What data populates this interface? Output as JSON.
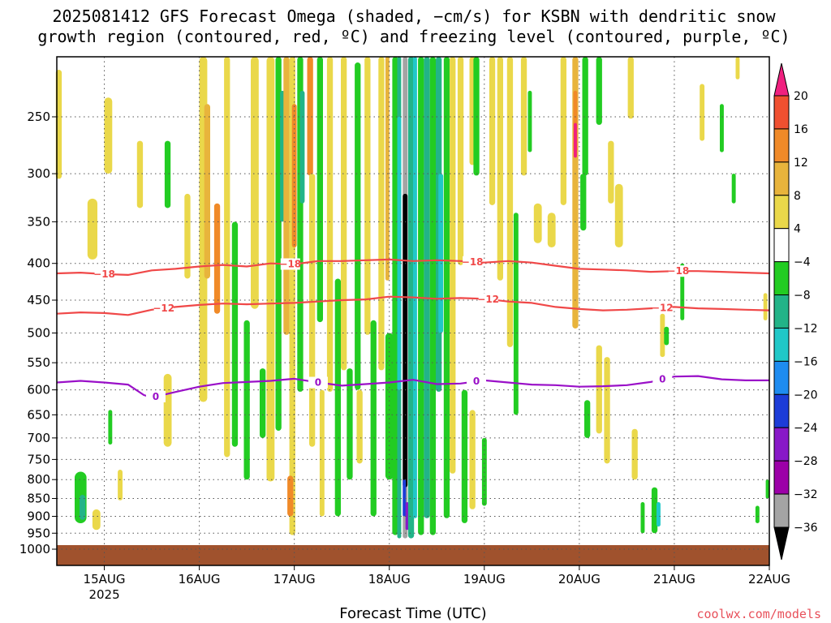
{
  "title": {
    "line1": "2025081412 GFS Forecast Omega (shaded, −cm/s) for KSBN with dendritic snow",
    "line2": "growth region (contoured, red, ºC) and freezing level (contoured, purple, ºC)"
  },
  "credit": "coolwx.com/models",
  "chart_data": {
    "type": "heatmap",
    "xlabel": "Forecast Time (UTC)",
    "x_ticks": [
      {
        "label": "15AUG",
        "sub": "2025",
        "t": 12
      },
      {
        "label": "16AUG",
        "t": 36
      },
      {
        "label": "17AUG",
        "t": 60
      },
      {
        "label": "18AUG",
        "t": 84
      },
      {
        "label": "19AUG",
        "t": 108
      },
      {
        "label": "20AUG",
        "t": 132
      },
      {
        "label": "21AUG",
        "t": 156
      },
      {
        "label": "22AUG",
        "t": 180
      }
    ],
    "xlim_hours": [
      0,
      180
    ],
    "y_ticks": [
      250,
      300,
      350,
      400,
      450,
      500,
      550,
      600,
      650,
      700,
      750,
      800,
      850,
      900,
      950,
      1000
    ],
    "ylim_hPa": [
      200,
      1030
    ],
    "y_scale": "log-pressure",
    "grid": true,
    "colorbar": {
      "labels": [
        "20",
        "16",
        "12",
        "8",
        "4",
        "−4",
        "−8",
        "−12",
        "−16",
        "−20",
        "−24",
        "−28",
        "−32",
        "−36"
      ],
      "colors": [
        "#f0207f",
        "#f05030",
        "#f08a28",
        "#e8b43c",
        "#ead84a",
        "#ffffff",
        "#22cc22",
        "#22b488",
        "#20c8c8",
        "#1e8cf0",
        "#1c3cd8",
        "#8818c8",
        "#9c00a8",
        "#a4a4a4",
        "#000000"
      ]
    },
    "contours": [
      {
        "name": "-18",
        "color": "#f04848",
        "label": "−18",
        "points": [
          [
            0,
            413
          ],
          [
            6,
            412
          ],
          [
            12,
            414
          ],
          [
            18,
            415
          ],
          [
            24,
            409
          ],
          [
            30,
            407
          ],
          [
            36,
            404
          ],
          [
            42,
            402
          ],
          [
            48,
            404
          ],
          [
            54,
            400
          ],
          [
            60,
            401
          ],
          [
            66,
            397
          ],
          [
            72,
            397
          ],
          [
            78,
            396
          ],
          [
            84,
            395
          ],
          [
            90,
            397
          ],
          [
            96,
            396
          ],
          [
            102,
            397
          ],
          [
            108,
            399
          ],
          [
            114,
            397
          ],
          [
            120,
            399
          ],
          [
            126,
            403
          ],
          [
            132,
            407
          ],
          [
            138,
            408
          ],
          [
            144,
            409
          ],
          [
            150,
            411
          ],
          [
            156,
            410
          ],
          [
            162,
            410
          ],
          [
            168,
            411
          ],
          [
            174,
            412
          ],
          [
            180,
            413
          ]
        ],
        "label_hours": [
          12,
          59,
          105,
          157
        ]
      },
      {
        "name": "-12",
        "color": "#f04848",
        "label": "−12",
        "points": [
          [
            0,
            470
          ],
          [
            6,
            468
          ],
          [
            12,
            469
          ],
          [
            18,
            472
          ],
          [
            24,
            464
          ],
          [
            30,
            460
          ],
          [
            36,
            457
          ],
          [
            42,
            455
          ],
          [
            48,
            456
          ],
          [
            54,
            455
          ],
          [
            60,
            454
          ],
          [
            66,
            452
          ],
          [
            72,
            450
          ],
          [
            78,
            449
          ],
          [
            84,
            445
          ],
          [
            90,
            446
          ],
          [
            96,
            448
          ],
          [
            102,
            447
          ],
          [
            108,
            448
          ],
          [
            114,
            452
          ],
          [
            120,
            454
          ],
          [
            126,
            460
          ],
          [
            132,
            463
          ],
          [
            138,
            465
          ],
          [
            144,
            464
          ],
          [
            150,
            462
          ],
          [
            156,
            460
          ],
          [
            162,
            462
          ],
          [
            168,
            463
          ],
          [
            174,
            464
          ],
          [
            180,
            465
          ]
        ],
        "label_hours": [
          27,
          109,
          153
        ]
      },
      {
        "name": "0",
        "color": "#9a10c8",
        "label": "0",
        "points": [
          [
            0,
            586
          ],
          [
            6,
            583
          ],
          [
            12,
            586
          ],
          [
            18,
            590
          ],
          [
            22,
            610
          ],
          [
            24,
            615
          ],
          [
            30,
            604
          ],
          [
            36,
            594
          ],
          [
            42,
            587
          ],
          [
            48,
            585
          ],
          [
            54,
            583
          ],
          [
            60,
            579
          ],
          [
            66,
            586
          ],
          [
            72,
            592
          ],
          [
            78,
            589
          ],
          [
            84,
            586
          ],
          [
            90,
            581
          ],
          [
            96,
            589
          ],
          [
            102,
            588
          ],
          [
            108,
            582
          ],
          [
            114,
            586
          ],
          [
            120,
            590
          ],
          [
            126,
            591
          ],
          [
            132,
            594
          ],
          [
            138,
            593
          ],
          [
            144,
            591
          ],
          [
            150,
            585
          ],
          [
            156,
            575
          ],
          [
            162,
            574
          ],
          [
            168,
            580
          ],
          [
            174,
            582
          ],
          [
            180,
            582
          ]
        ],
        "label_hours": [
          25,
          66,
          106,
          153
        ]
      }
    ],
    "features": [
      {
        "t": 0.5,
        "dt": 1.5,
        "p1": 215,
        "p2": 305,
        "val": 6
      },
      {
        "t": 13,
        "dt": 2,
        "p1": 235,
        "p2": 300,
        "val": 6
      },
      {
        "t": 9,
        "dt": 2.5,
        "p1": 325,
        "p2": 395,
        "val": 6
      },
      {
        "t": 6,
        "dt": 3,
        "p1": 780,
        "p2": 920,
        "val": -9
      },
      {
        "t": 6.5,
        "dt": 1.5,
        "p1": 840,
        "p2": 910,
        "val": -13
      },
      {
        "t": 10,
        "dt": 2,
        "p1": 880,
        "p2": 940,
        "val": 6
      },
      {
        "t": 16,
        "dt": 1.2,
        "p1": 775,
        "p2": 855,
        "val": 6
      },
      {
        "t": 13.5,
        "dt": 1,
        "p1": 640,
        "p2": 715,
        "val": -9
      },
      {
        "t": 21,
        "dt": 1.5,
        "p1": 270,
        "p2": 335,
        "val": 6
      },
      {
        "t": 28,
        "dt": 1.5,
        "p1": 270,
        "p2": 335,
        "val": -9
      },
      {
        "t": 28,
        "dt": 2,
        "p1": 570,
        "p2": 720,
        "val": 6
      },
      {
        "t": 33,
        "dt": 1.5,
        "p1": 320,
        "p2": 420,
        "val": 6
      },
      {
        "t": 37,
        "dt": 2,
        "p1": 205,
        "p2": 620,
        "val": 6
      },
      {
        "t": 38,
        "dt": 1.5,
        "p1": 240,
        "p2": 420,
        "val": 10
      },
      {
        "t": 40.5,
        "dt": 1.5,
        "p1": 330,
        "p2": 470,
        "val": 14
      },
      {
        "t": 43,
        "dt": 1.5,
        "p1": 205,
        "p2": 740,
        "val": 6
      },
      {
        "t": 45,
        "dt": 1.5,
        "p1": 350,
        "p2": 720,
        "val": -9
      },
      {
        "t": 48,
        "dt": 1.5,
        "p1": 480,
        "p2": 800,
        "val": -9
      },
      {
        "t": 50,
        "dt": 2,
        "p1": 205,
        "p2": 460,
        "val": 6
      },
      {
        "t": 52,
        "dt": 1.5,
        "p1": 560,
        "p2": 700,
        "val": -9
      },
      {
        "t": 54,
        "dt": 2,
        "p1": 205,
        "p2": 800,
        "val": 6
      },
      {
        "t": 56,
        "dt": 1.5,
        "p1": 205,
        "p2": 680,
        "val": -9
      },
      {
        "t": 57,
        "dt": 1.2,
        "p1": 230,
        "p2": 350,
        "val": -13
      },
      {
        "t": 58,
        "dt": 1.5,
        "p1": 205,
        "p2": 500,
        "val": 10
      },
      {
        "t": 59.5,
        "dt": 1.5,
        "p1": 205,
        "p2": 950,
        "val": 6
      },
      {
        "t": 60,
        "dt": 1.2,
        "p1": 240,
        "p2": 380,
        "val": 14
      },
      {
        "t": 61.5,
        "dt": 1.5,
        "p1": 205,
        "p2": 600,
        "val": -9
      },
      {
        "t": 62,
        "dt": 1.2,
        "p1": 230,
        "p2": 330,
        "val": -13
      },
      {
        "t": 59,
        "dt": 1.5,
        "p1": 790,
        "p2": 900,
        "val": 14
      },
      {
        "t": 64,
        "dt": 1.5,
        "p1": 205,
        "p2": 300,
        "val": 14
      },
      {
        "t": 64.5,
        "dt": 1.5,
        "p1": 300,
        "p2": 720,
        "val": 6
      },
      {
        "t": 66.5,
        "dt": 1.5,
        "p1": 205,
        "p2": 480,
        "val": -9
      },
      {
        "t": 67,
        "dt": 1.2,
        "p1": 600,
        "p2": 900,
        "val": 6
      },
      {
        "t": 69,
        "dt": 1.5,
        "p1": 205,
        "p2": 600,
        "val": 6
      },
      {
        "t": 71,
        "dt": 1.5,
        "p1": 420,
        "p2": 900,
        "val": -9
      },
      {
        "t": 72.5,
        "dt": 1.5,
        "p1": 205,
        "p2": 560,
        "val": 6
      },
      {
        "t": 74,
        "dt": 1.5,
        "p1": 560,
        "p2": 800,
        "val": -9
      },
      {
        "t": 76,
        "dt": 1.5,
        "p1": 210,
        "p2": 600,
        "val": -9
      },
      {
        "t": 76.5,
        "dt": 1.5,
        "p1": 600,
        "p2": 760,
        "val": 6
      },
      {
        "t": 78.5,
        "dt": 1.5,
        "p1": 205,
        "p2": 500,
        "val": 6
      },
      {
        "t": 80,
        "dt": 1.5,
        "p1": 480,
        "p2": 900,
        "val": -9
      },
      {
        "t": 82,
        "dt": 1.5,
        "p1": 205,
        "p2": 560,
        "val": 6
      },
      {
        "t": 83.5,
        "dt": 1,
        "p1": 205,
        "p2": 420,
        "val": 10
      },
      {
        "t": 84,
        "dt": 2,
        "p1": 500,
        "p2": 800,
        "val": -9
      },
      {
        "t": 85.5,
        "dt": 1.5,
        "p1": 205,
        "p2": 950,
        "val": -9
      },
      {
        "t": 86.5,
        "dt": 1,
        "p1": 205,
        "p2": 960,
        "val": -13
      },
      {
        "t": 86.5,
        "dt": 1,
        "p1": 250,
        "p2": 600,
        "val": -17
      },
      {
        "t": 88,
        "dt": 1.2,
        "p1": 205,
        "p2": 960,
        "val": -34
      },
      {
        "t": 88,
        "dt": 1.2,
        "p1": 320,
        "p2": 820,
        "val": -40
      },
      {
        "t": 87.8,
        "dt": 0.8,
        "p1": 800,
        "p2": 900,
        "val": -26
      },
      {
        "t": 88.5,
        "dt": 0.8,
        "p1": 860,
        "p2": 940,
        "val": -30
      },
      {
        "t": 89.5,
        "dt": 1.5,
        "p1": 205,
        "p2": 960,
        "val": -13
      },
      {
        "t": 90.5,
        "dt": 1,
        "p1": 205,
        "p2": 900,
        "val": -17
      },
      {
        "t": 92,
        "dt": 1.5,
        "p1": 205,
        "p2": 950,
        "val": -9
      },
      {
        "t": 93.5,
        "dt": 1.5,
        "p1": 205,
        "p2": 900,
        "val": -13
      },
      {
        "t": 95,
        "dt": 1.5,
        "p1": 205,
        "p2": 950,
        "val": -9
      },
      {
        "t": 96.5,
        "dt": 1.5,
        "p1": 205,
        "p2": 600,
        "val": -13
      },
      {
        "t": 97,
        "dt": 1.2,
        "p1": 300,
        "p2": 500,
        "val": -17
      },
      {
        "t": 98.5,
        "dt": 1.5,
        "p1": 205,
        "p2": 900,
        "val": -9
      },
      {
        "t": 100,
        "dt": 1.5,
        "p1": 205,
        "p2": 780,
        "val": 6
      },
      {
        "t": 102,
        "dt": 1.5,
        "p1": 205,
        "p2": 400,
        "val": 6
      },
      {
        "t": 103,
        "dt": 1.5,
        "p1": 600,
        "p2": 920,
        "val": -9
      },
      {
        "t": 105,
        "dt": 1.5,
        "p1": 205,
        "p2": 290,
        "val": 6
      },
      {
        "t": 106,
        "dt": 1.5,
        "p1": 205,
        "p2": 300,
        "val": -9
      },
      {
        "t": 105,
        "dt": 1.5,
        "p1": 640,
        "p2": 880,
        "val": 6
      },
      {
        "t": 108,
        "dt": 1.2,
        "p1": 700,
        "p2": 870,
        "val": -9
      },
      {
        "t": 110,
        "dt": 1.5,
        "p1": 205,
        "p2": 330,
        "val": 6
      },
      {
        "t": 112,
        "dt": 1.5,
        "p1": 205,
        "p2": 420,
        "val": 6
      },
      {
        "t": 114.5,
        "dt": 1.5,
        "p1": 205,
        "p2": 520,
        "val": 6
      },
      {
        "t": 116,
        "dt": 1.2,
        "p1": 340,
        "p2": 650,
        "val": -9
      },
      {
        "t": 118,
        "dt": 1.5,
        "p1": 205,
        "p2": 300,
        "val": 6
      },
      {
        "t": 119.5,
        "dt": 1,
        "p1": 230,
        "p2": 280,
        "val": -9
      },
      {
        "t": 121.5,
        "dt": 2,
        "p1": 330,
        "p2": 375,
        "val": 6
      },
      {
        "t": 125,
        "dt": 2,
        "p1": 340,
        "p2": 380,
        "val": 6
      },
      {
        "t": 128,
        "dt": 1.5,
        "p1": 205,
        "p2": 330,
        "val": 6
      },
      {
        "t": 131,
        "dt": 1.5,
        "p1": 205,
        "p2": 490,
        "val": 10
      },
      {
        "t": 131,
        "dt": 1,
        "p1": 230,
        "p2": 280,
        "val": 14
      },
      {
        "t": 131,
        "dt": 0.8,
        "p1": 255,
        "p2": 285,
        "val": 20
      },
      {
        "t": 133.5,
        "dt": 1.5,
        "p1": 205,
        "p2": 300,
        "val": -9
      },
      {
        "t": 133,
        "dt": 1.5,
        "p1": 300,
        "p2": 360,
        "val": -9
      },
      {
        "t": 134,
        "dt": 1.5,
        "p1": 620,
        "p2": 700,
        "val": -9
      },
      {
        "t": 137,
        "dt": 1.5,
        "p1": 520,
        "p2": 690,
        "val": 6
      },
      {
        "t": 139,
        "dt": 1.5,
        "p1": 540,
        "p2": 760,
        "val": 6
      },
      {
        "t": 137,
        "dt": 1.5,
        "p1": 205,
        "p2": 255,
        "val": -9
      },
      {
        "t": 140,
        "dt": 1.5,
        "p1": 270,
        "p2": 330,
        "val": 6
      },
      {
        "t": 142,
        "dt": 2,
        "p1": 310,
        "p2": 380,
        "val": 6
      },
      {
        "t": 145,
        "dt": 1.5,
        "p1": 205,
        "p2": 250,
        "val": 6
      },
      {
        "t": 146,
        "dt": 1.5,
        "p1": 680,
        "p2": 800,
        "val": 6
      },
      {
        "t": 148,
        "dt": 1,
        "p1": 860,
        "p2": 950,
        "val": -9
      },
      {
        "t": 151,
        "dt": 1.5,
        "p1": 820,
        "p2": 950,
        "val": -9
      },
      {
        "t": 152,
        "dt": 1,
        "p1": 860,
        "p2": 930,
        "val": -17
      },
      {
        "t": 153,
        "dt": 1.2,
        "p1": 470,
        "p2": 540,
        "val": 6
      },
      {
        "t": 154,
        "dt": 1.2,
        "p1": 490,
        "p2": 520,
        "val": -9
      },
      {
        "t": 158,
        "dt": 1,
        "p1": 400,
        "p2": 480,
        "val": -9
      },
      {
        "t": 163,
        "dt": 1.2,
        "p1": 225,
        "p2": 270,
        "val": 6
      },
      {
        "t": 168,
        "dt": 1,
        "p1": 240,
        "p2": 280,
        "val": -9
      },
      {
        "t": 171,
        "dt": 1,
        "p1": 300,
        "p2": 330,
        "val": -9
      },
      {
        "t": 172,
        "dt": 1,
        "p1": 200,
        "p2": 215,
        "val": 6
      },
      {
        "t": 177,
        "dt": 1,
        "p1": 870,
        "p2": 920,
        "val": -9
      },
      {
        "t": 179,
        "dt": 1,
        "p1": 440,
        "p2": 480,
        "val": 6
      },
      {
        "t": 179.5,
        "dt": 0.8,
        "p1": 800,
        "p2": 850,
        "val": -9
      }
    ]
  }
}
